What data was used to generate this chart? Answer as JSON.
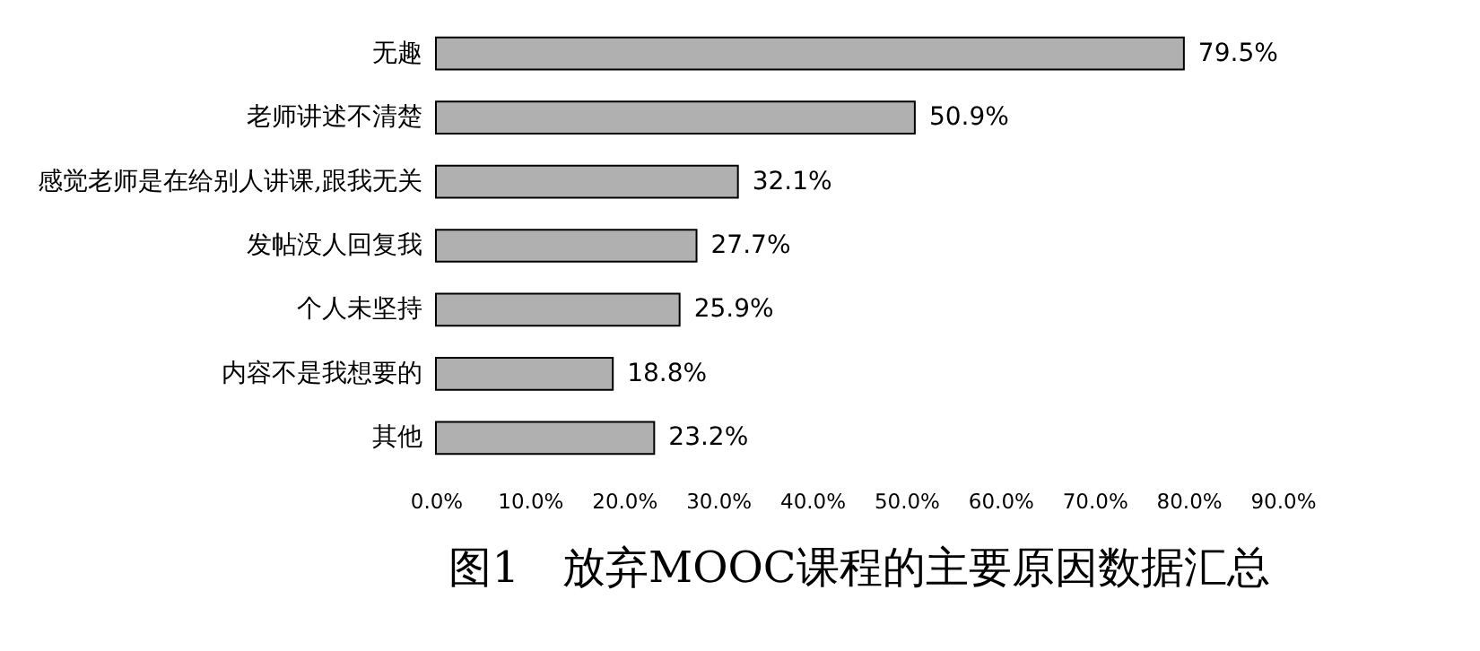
{
  "chart_data": {
    "type": "bar",
    "orientation": "horizontal",
    "title": "图1　放弃MOOC课程的主要原因数据汇总",
    "categories": [
      "无趣",
      "老师讲述不清楚",
      "感觉老师是在给别人讲课,跟我无关",
      "发帖没人回复我",
      "个人未坚持",
      "内容不是我想要的",
      "其他"
    ],
    "values": [
      79.5,
      50.9,
      32.1,
      27.7,
      25.9,
      18.8,
      23.2
    ],
    "value_labels": [
      "79.5%",
      "50.9%",
      "32.1%",
      "27.7%",
      "25.9%",
      "18.8%",
      "23.2%"
    ],
    "color": "#b0b0b0",
    "xlim": [
      0,
      90
    ],
    "xticks": [
      {
        "value": 0,
        "label": "0.0%"
      },
      {
        "value": 10,
        "label": "10.0%"
      },
      {
        "value": 20,
        "label": "20.0%"
      },
      {
        "value": 30,
        "label": "30.0%"
      },
      {
        "value": 40,
        "label": "40.0%"
      },
      {
        "value": 50,
        "label": "50.0%"
      },
      {
        "value": 60,
        "label": "60.0%"
      },
      {
        "value": 70,
        "label": "70.0%"
      },
      {
        "value": 80,
        "label": "80.0%"
      },
      {
        "value": 90,
        "label": "90.0%"
      }
    ],
    "grid": false
  }
}
